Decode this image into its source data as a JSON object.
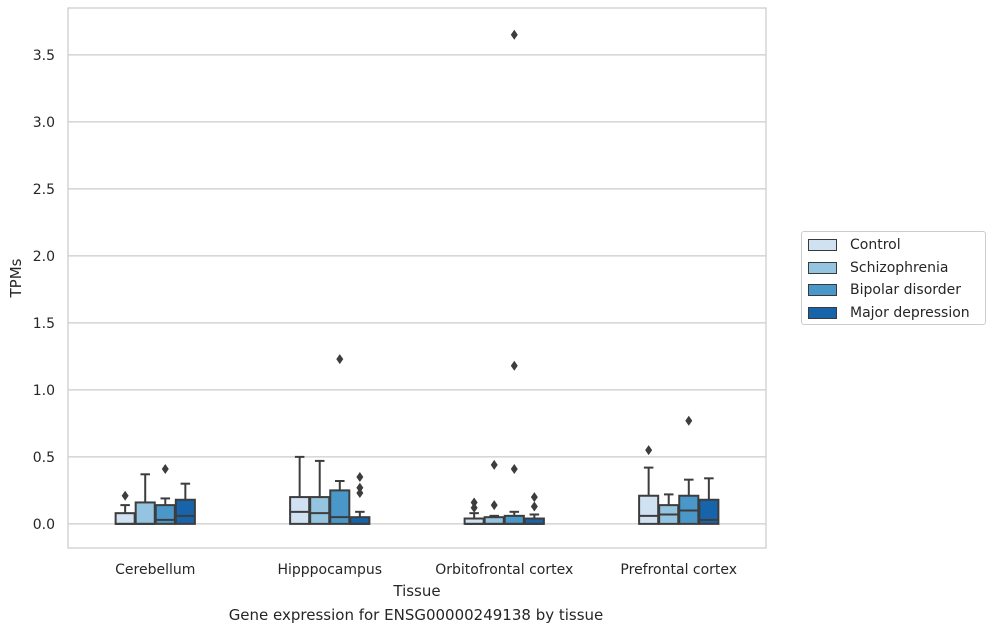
{
  "chart_data": {
    "type": "boxplot",
    "xlabel": "Tissue",
    "ylabel": "TPMs",
    "caption": "Gene expression for ENSG00000249138 by tissue",
    "ylim": [
      -0.18,
      3.85
    ],
    "yticks": [
      "0.0",
      "0.5",
      "1.0",
      "1.5",
      "2.0",
      "2.5",
      "3.0",
      "3.5"
    ],
    "ytick_values": [
      0.0,
      0.5,
      1.0,
      1.5,
      2.0,
      2.5,
      3.0,
      3.5
    ],
    "grid": "horizontal",
    "legend_position": "right",
    "categories": [
      "Cerebellum",
      "Hipppocampus",
      "Orbitofrontal cortex",
      "Prefrontal cortex"
    ],
    "series": [
      {
        "name": "Control",
        "color": "#d0e1f2",
        "boxes": [
          {
            "whislo": 0.0,
            "q1": 0.0,
            "med": 0.0,
            "q3": 0.08,
            "whishi": 0.14,
            "fliers": [
              0.21
            ]
          },
          {
            "whislo": 0.0,
            "q1": 0.0,
            "med": 0.09,
            "q3": 0.2,
            "whishi": 0.5,
            "fliers": []
          },
          {
            "whislo": 0.0,
            "q1": 0.0,
            "med": 0.0,
            "q3": 0.04,
            "whishi": 0.08,
            "fliers": [
              0.12,
              0.16
            ]
          },
          {
            "whislo": 0.0,
            "q1": 0.0,
            "med": 0.06,
            "q3": 0.21,
            "whishi": 0.42,
            "fliers": [
              0.55
            ]
          }
        ]
      },
      {
        "name": "Schizophrenia",
        "color": "#94c4df",
        "boxes": [
          {
            "whislo": 0.0,
            "q1": 0.0,
            "med": 0.0,
            "q3": 0.16,
            "whishi": 0.37,
            "fliers": []
          },
          {
            "whislo": 0.0,
            "q1": 0.0,
            "med": 0.08,
            "q3": 0.2,
            "whishi": 0.47,
            "fliers": []
          },
          {
            "whislo": 0.0,
            "q1": 0.0,
            "med": 0.0,
            "q3": 0.05,
            "whishi": 0.06,
            "fliers": [
              0.14,
              0.44
            ]
          },
          {
            "whislo": 0.0,
            "q1": 0.0,
            "med": 0.07,
            "q3": 0.14,
            "whishi": 0.22,
            "fliers": []
          }
        ]
      },
      {
        "name": "Bipolar disorder",
        "color": "#4a98c9",
        "boxes": [
          {
            "whislo": 0.0,
            "q1": 0.0,
            "med": 0.03,
            "q3": 0.14,
            "whishi": 0.19,
            "fliers": [
              0.41
            ]
          },
          {
            "whislo": 0.0,
            "q1": 0.0,
            "med": 0.05,
            "q3": 0.25,
            "whishi": 0.32,
            "fliers": [
              1.23
            ]
          },
          {
            "whislo": 0.0,
            "q1": 0.0,
            "med": 0.0,
            "q3": 0.06,
            "whishi": 0.09,
            "fliers": [
              0.41,
              1.18,
              3.65
            ]
          },
          {
            "whislo": 0.0,
            "q1": 0.0,
            "med": 0.1,
            "q3": 0.21,
            "whishi": 0.33,
            "fliers": [
              0.77
            ]
          }
        ]
      },
      {
        "name": "Major depression",
        "color": "#1764ab",
        "boxes": [
          {
            "whislo": 0.0,
            "q1": 0.0,
            "med": 0.06,
            "q3": 0.18,
            "whishi": 0.3,
            "fliers": []
          },
          {
            "whislo": 0.0,
            "q1": 0.0,
            "med": 0.0,
            "q3": 0.05,
            "whishi": 0.09,
            "fliers": [
              0.23,
              0.27,
              0.35
            ]
          },
          {
            "whislo": 0.0,
            "q1": 0.0,
            "med": 0.0,
            "q3": 0.04,
            "whishi": 0.07,
            "fliers": [
              0.13,
              0.2
            ]
          },
          {
            "whislo": 0.0,
            "q1": 0.0,
            "med": 0.03,
            "q3": 0.18,
            "whishi": 0.34,
            "fliers": []
          }
        ]
      }
    ]
  }
}
